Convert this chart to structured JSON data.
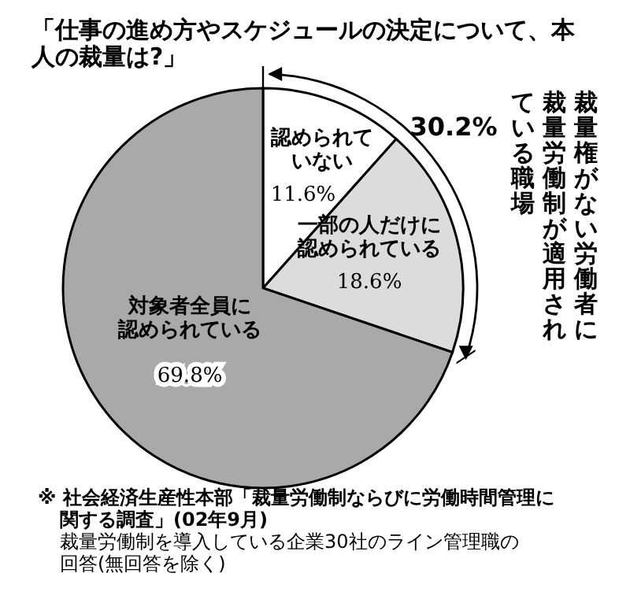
{
  "chart_data": {
    "type": "pie",
    "title": "「仕事の進め方やスケジュールの決定について、本人の裁量は?」",
    "categories": [
      "認められていない",
      "一部の人だけに認められている",
      "対象者全員に認められている"
    ],
    "values": [
      11.6,
      18.6,
      69.8
    ],
    "colors": [
      "#ffffff",
      "#dcdcdc",
      "#a9a9a9"
    ],
    "value_labels": [
      "11.6%",
      "18.6%",
      "69.8%"
    ],
    "annotations": [
      "30.2%",
      "裁量権がない労働者に",
      "裁量労働制が適用され",
      "ている職場",
      "※ 社会経済生産性本部「裁量労働制ならびに労働時間管理に関する調査」(02年9月)",
      "裁量労働制を導入している企業30社のライン管理職の回答(無回答を除く)"
    ]
  }
}
